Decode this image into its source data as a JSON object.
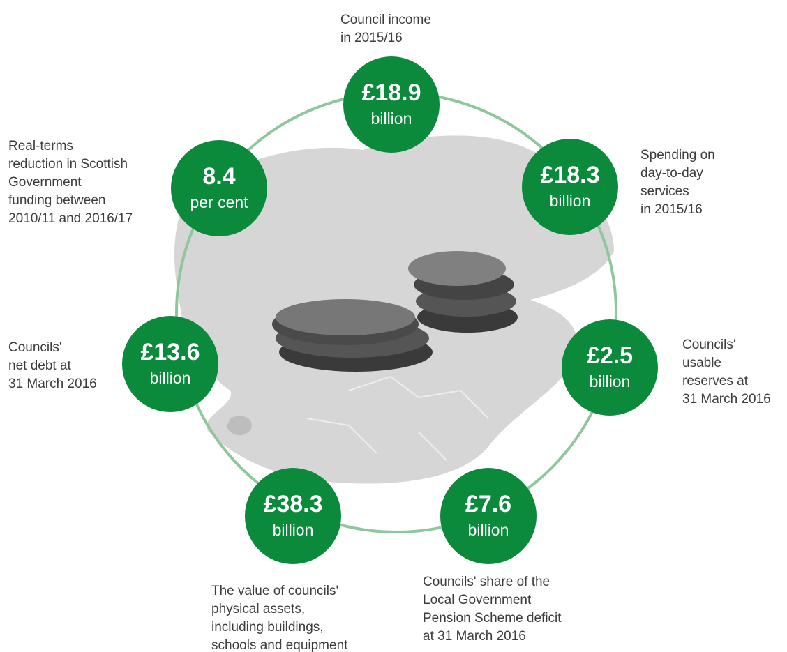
{
  "items": [
    {
      "value": "£18.9",
      "unit": "billion",
      "label": [
        "Council income",
        "in 2015/16"
      ]
    },
    {
      "value": "£18.3",
      "unit": "billion",
      "label": [
        "Spending on",
        "day-to-day",
        "services",
        "in 2015/16"
      ]
    },
    {
      "value": "£2.5",
      "unit": "billion",
      "label": [
        "Councils'",
        "usable",
        "reserves at",
        "31 March 2016"
      ]
    },
    {
      "value": "£7.6",
      "unit": "billion",
      "label": [
        "Councils' share of the",
        "Local Government",
        "Pension Scheme deficit",
        "at 31 March 2016"
      ]
    },
    {
      "value": "£38.3",
      "unit": "billion",
      "label": [
        "The value of councils'",
        "physical assets,",
        "including buildings,",
        "schools and equipment"
      ]
    },
    {
      "value": "£13.6",
      "unit": "billion",
      "label": [
        "Councils'",
        "net debt at",
        "31 March 2016"
      ]
    },
    {
      "value": "8.4",
      "unit": "per cent",
      "label": [
        "Real-terms",
        "reduction in Scottish",
        "Government",
        "funding between",
        "2010/11 and 2016/17"
      ]
    }
  ]
}
